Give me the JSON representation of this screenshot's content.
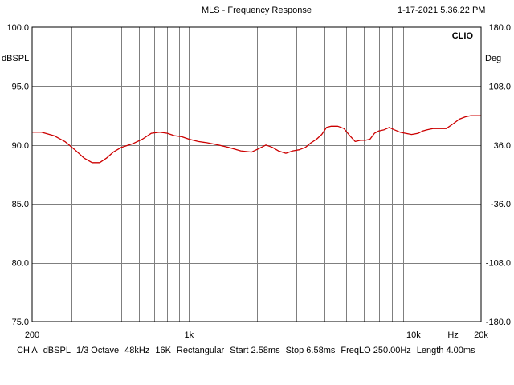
{
  "window": {
    "title": "MLS - Frequency Response",
    "timestamp": "1-17-2021 5.36.22 PM"
  },
  "chart_data": {
    "type": "line",
    "title": "MLS - Frequency Response",
    "brand": "CLIO",
    "x_scale": "log",
    "xlim": [
      200,
      20000
    ],
    "xticks": [
      {
        "value": 200,
        "label": "200"
      },
      {
        "value": 1000,
        "label": "1k"
      },
      {
        "value": 10000,
        "label": "10k"
      },
      {
        "value": 20000,
        "label": "20k"
      }
    ],
    "x_unit_label": "Hz",
    "x_unit_label_at": 15000,
    "ylim": [
      75,
      100
    ],
    "ylabel": "dBSPL",
    "yticks": [
      "100.0",
      "95.0",
      "90.0",
      "85.0",
      "80.0",
      "75.0"
    ],
    "y2lim": [
      -180,
      180
    ],
    "y2label": "Deg",
    "y2ticks": [
      "180.0",
      "108.0",
      "36.0",
      "-36.0",
      "-108.0",
      "-180.0"
    ],
    "grid": true,
    "line_color": "#cc0000",
    "series": [
      {
        "x": [
          200,
          220,
          250,
          280,
          310,
          340,
          370,
          400,
          430,
          460,
          500,
          560,
          620,
          680,
          740,
          800,
          860,
          930,
          1000,
          1100,
          1200,
          1350,
          1500,
          1700,
          1900,
          2050,
          2200,
          2350,
          2500,
          2700,
          2900,
          3100,
          3300,
          3500,
          3700,
          3900,
          4100,
          4300,
          4600,
          4900,
          5200,
          5500,
          5800,
          6100,
          6400,
          6700,
          7000,
          7400,
          7800,
          8200,
          8700,
          9200,
          9800,
          10500,
          11000,
          11500,
          12200,
          13000,
          14000,
          15000,
          16000,
          17000,
          18000,
          19000,
          20000
        ],
        "y": [
          91.1,
          91.1,
          90.8,
          90.3,
          89.6,
          88.9,
          88.5,
          88.5,
          88.9,
          89.4,
          89.8,
          90.1,
          90.5,
          91.0,
          91.1,
          91.0,
          90.8,
          90.7,
          90.5,
          90.3,
          90.2,
          90.0,
          89.8,
          89.5,
          89.4,
          89.7,
          90.0,
          89.8,
          89.5,
          89.3,
          89.5,
          89.6,
          89.8,
          90.2,
          90.5,
          90.9,
          91.5,
          91.6,
          91.6,
          91.4,
          90.8,
          90.3,
          90.4,
          90.4,
          90.5,
          91.0,
          91.2,
          91.3,
          91.5,
          91.3,
          91.1,
          91.0,
          90.9,
          91.0,
          91.2,
          91.3,
          91.4,
          91.4,
          91.4,
          91.8,
          92.2,
          92.4,
          92.5,
          92.5,
          92.5
        ]
      }
    ]
  },
  "footer": {
    "items": [
      "CH A",
      "dBSPL",
      "1/3 Octave",
      "48kHz",
      "16K",
      "Rectangular",
      "Start 2.58ms",
      "Stop 6.58ms",
      "FreqLO 250.00Hz",
      "Length 4.00ms"
    ]
  }
}
